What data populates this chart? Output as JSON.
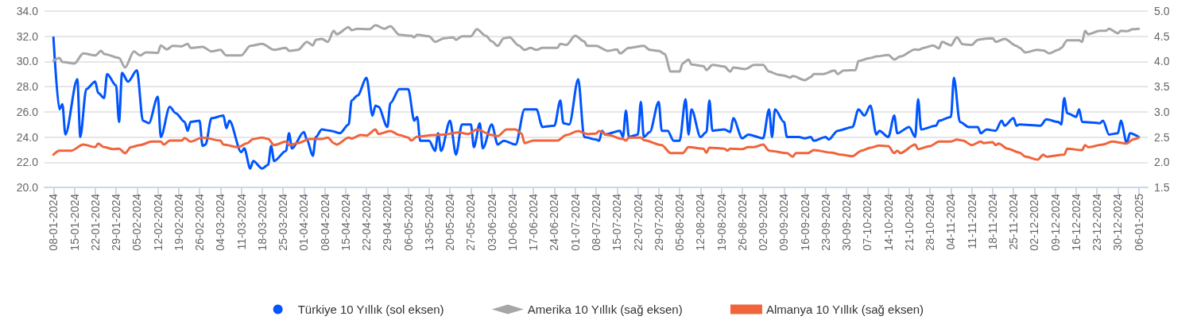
{
  "chart_data": {
    "type": "line",
    "grid": "y",
    "legend": "bottom",
    "xlim": [
      "2024-01-05",
      "2025-01-09"
    ],
    "xticks": [
      {
        "value": "2024-01-08",
        "label": "08-01-2024"
      },
      {
        "value": "2024-01-15",
        "label": "15-01-2024"
      },
      {
        "value": "2024-01-22",
        "label": "22-01-2024"
      },
      {
        "value": "2024-01-29",
        "label": "29-01-2024"
      },
      {
        "value": "2024-02-05",
        "label": "05-02-2024"
      },
      {
        "value": "2024-02-12",
        "label": "12-02-2024"
      },
      {
        "value": "2024-02-19",
        "label": "19-02-2024"
      },
      {
        "value": "2024-02-26",
        "label": "26-02-2024"
      },
      {
        "value": "2024-03-04",
        "label": "04-03-2024"
      },
      {
        "value": "2024-03-11",
        "label": "11-03-2024"
      },
      {
        "value": "2024-03-18",
        "label": "18-03-2024"
      },
      {
        "value": "2024-03-25",
        "label": "25-03-2024"
      },
      {
        "value": "2024-04-01",
        "label": "01-04-2024"
      },
      {
        "value": "2024-04-08",
        "label": "08-04-2024"
      },
      {
        "value": "2024-04-15",
        "label": "15-04-2024"
      },
      {
        "value": "2024-04-22",
        "label": "22-04-2024"
      },
      {
        "value": "2024-04-29",
        "label": "29-04-2024"
      },
      {
        "value": "2024-05-06",
        "label": "06-05-2024"
      },
      {
        "value": "2024-05-13",
        "label": "13-05-2024"
      },
      {
        "value": "2024-05-20",
        "label": "20-05-2024"
      },
      {
        "value": "2024-05-27",
        "label": "27-05-2024"
      },
      {
        "value": "2024-06-03",
        "label": "03-06-2024"
      },
      {
        "value": "2024-06-10",
        "label": "10-06-2024"
      },
      {
        "value": "2024-06-17",
        "label": "17-06-2024"
      },
      {
        "value": "2024-06-24",
        "label": "24-06-2024"
      },
      {
        "value": "2024-07-01",
        "label": "01-07-2024"
      },
      {
        "value": "2024-07-08",
        "label": "08-07-2024"
      },
      {
        "value": "2024-07-15",
        "label": "15-07-2024"
      },
      {
        "value": "2024-07-22",
        "label": "22-07-2024"
      },
      {
        "value": "2024-07-29",
        "label": "29-07-2024"
      },
      {
        "value": "2024-08-05",
        "label": "05-08-2024"
      },
      {
        "value": "2024-08-12",
        "label": "12-08-2024"
      },
      {
        "value": "2024-08-19",
        "label": "19-08-2024"
      },
      {
        "value": "2024-08-26",
        "label": "26-08-2024"
      },
      {
        "value": "2024-09-02",
        "label": "02-09-2024"
      },
      {
        "value": "2024-09-09",
        "label": "09-09-2024"
      },
      {
        "value": "2024-09-16",
        "label": "16-09-2024"
      },
      {
        "value": "2024-09-23",
        "label": "23-09-2024"
      },
      {
        "value": "2024-09-30",
        "label": "30-09-2024"
      },
      {
        "value": "2024-10-07",
        "label": "07-10-2024"
      },
      {
        "value": "2024-10-14",
        "label": "14-10-2024"
      },
      {
        "value": "2024-10-21",
        "label": "21-10-2024"
      },
      {
        "value": "2024-10-28",
        "label": "28-10-2024"
      },
      {
        "value": "2024-11-04",
        "label": "04-11-2024"
      },
      {
        "value": "2024-11-11",
        "label": "11-11-2024"
      },
      {
        "value": "2024-11-18",
        "label": "18-11-2024"
      },
      {
        "value": "2024-11-25",
        "label": "25-11-2024"
      },
      {
        "value": "2024-12-02",
        "label": "02-12-2024"
      },
      {
        "value": "2024-12-09",
        "label": "09-12-2024"
      },
      {
        "value": "2024-12-16",
        "label": "16-12-2024"
      },
      {
        "value": "2024-12-23",
        "label": "23-12-2024"
      },
      {
        "value": "2024-12-30",
        "label": "30-12-2024"
      },
      {
        "value": "2025-01-06",
        "label": "06-01-2025"
      }
    ],
    "ylim": [
      20,
      34
    ],
    "yticks": [
      {
        "value": 20,
        "label": "20.0"
      },
      {
        "value": 22,
        "label": "22.0"
      },
      {
        "value": 24,
        "label": "24.0"
      },
      {
        "value": 26,
        "label": "26.0"
      },
      {
        "value": 28,
        "label": "28.0"
      },
      {
        "value": 30,
        "label": "30.0"
      },
      {
        "value": 32,
        "label": "32.0"
      },
      {
        "value": 34,
        "label": "34.0"
      }
    ],
    "y2lim": [
      1.5,
      5
    ],
    "y2ticks": [
      1.5,
      {
        "value": 2,
        "label": "2.0"
      },
      2.5,
      {
        "value": 3,
        "label": "3.0"
      },
      3.5,
      {
        "value": 4,
        "label": "4.0"
      },
      4.5,
      {
        "value": 5,
        "label": "5.0"
      }
    ],
    "series": [
      {
        "name": "Türkiye 10 Yıllık (sol eksen)",
        "color": "#0055ff",
        "x": [
          "2024-01-08",
          "2024-01-10",
          "2024-01-11",
          "2024-01-12",
          "2024-01-16",
          "2024-01-17",
          "2024-01-19",
          "2024-01-22",
          "2024-01-23",
          "2024-01-25",
          "2024-01-26",
          "2024-01-29",
          "2024-01-30",
          "2024-01-31",
          "2024-02-02",
          "2024-02-05",
          "2024-02-07",
          "2024-02-09",
          "2024-02-12",
          "2024-02-13",
          "2024-02-16",
          "2024-02-18",
          "2024-02-21",
          "2024-02-22",
          "2024-02-23",
          "2024-02-26",
          "2024-02-27",
          "2024-02-28",
          "2024-03-01",
          "2024-03-05",
          "2024-03-06",
          "2024-03-07",
          "2024-03-11",
          "2024-03-12",
          "2024-03-14",
          "2024-03-15",
          "2024-03-18",
          "2024-03-20",
          "2024-03-21",
          "2024-03-22",
          "2024-03-26",
          "2024-03-27",
          "2024-03-28",
          "2024-04-01",
          "2024-04-02",
          "2024-04-04",
          "2024-04-05",
          "2024-04-07",
          "2024-04-10",
          "2024-04-13",
          "2024-04-16",
          "2024-04-17",
          "2024-04-19",
          "2024-04-22",
          "2024-04-24",
          "2024-04-25",
          "2024-04-26",
          "2024-04-29",
          "2024-04-30",
          "2024-05-03",
          "2024-05-06",
          "2024-05-08",
          "2024-05-09",
          "2024-05-10",
          "2024-05-13",
          "2024-05-15",
          "2024-05-16",
          "2024-05-17",
          "2024-05-20",
          "2024-05-22",
          "2024-05-24",
          "2024-05-27",
          "2024-05-28",
          "2024-05-30",
          "2024-05-31",
          "2024-06-03",
          "2024-06-05",
          "2024-06-07",
          "2024-06-11",
          "2024-06-14",
          "2024-06-18",
          "2024-06-20",
          "2024-06-24",
          "2024-06-26",
          "2024-06-27",
          "2024-06-29",
          "2024-07-02",
          "2024-07-04",
          "2024-07-08",
          "2024-07-09",
          "2024-07-10",
          "2024-07-11",
          "2024-07-16",
          "2024-07-17",
          "2024-07-18",
          "2024-07-19",
          "2024-07-22",
          "2024-07-23",
          "2024-07-24",
          "2024-07-26",
          "2024-07-29",
          "2024-07-30",
          "2024-08-01",
          "2024-08-03",
          "2024-08-05",
          "2024-08-07",
          "2024-08-08",
          "2024-08-09",
          "2024-08-12",
          "2024-08-14",
          "2024-08-15",
          "2024-08-16",
          "2024-08-20",
          "2024-08-22",
          "2024-08-23",
          "2024-08-26",
          "2024-08-28",
          "2024-09-02",
          "2024-09-04",
          "2024-09-05",
          "2024-09-06",
          "2024-09-09",
          "2024-09-10",
          "2024-09-14",
          "2024-09-16",
          "2024-09-18",
          "2024-09-19",
          "2024-09-23",
          "2024-09-24",
          "2024-09-27",
          "2024-10-02",
          "2024-10-04",
          "2024-10-06",
          "2024-10-08",
          "2024-10-10",
          "2024-10-11",
          "2024-10-14",
          "2024-10-16",
          "2024-10-17",
          "2024-10-21",
          "2024-10-23",
          "2024-10-24",
          "2024-10-25",
          "2024-10-30",
          "2024-10-31",
          "2024-11-04",
          "2024-11-05",
          "2024-11-07",
          "2024-11-10",
          "2024-11-13",
          "2024-11-14",
          "2024-11-16",
          "2024-11-19",
          "2024-11-21",
          "2024-11-22",
          "2024-11-25",
          "2024-11-26",
          "2024-11-27",
          "2024-12-04",
          "2024-12-06",
          "2024-12-10",
          "2024-12-11",
          "2024-12-12",
          "2024-12-13",
          "2024-12-16",
          "2024-12-17",
          "2024-12-18",
          "2024-12-24",
          "2024-12-25",
          "2024-12-27",
          "2024-12-30",
          "2024-12-31",
          "2025-01-02",
          "2025-01-03",
          "2025-01-06"
        ],
        "values": [
          31.9,
          26.2,
          26.6,
          24.2,
          28.6,
          24.0,
          27.8,
          28.4,
          27.5,
          27.1,
          29.0,
          28.1,
          25.2,
          29.1,
          28.4,
          29.3,
          25.3,
          25.1,
          27.2,
          24.0,
          26.4,
          25.9,
          25.2,
          24.5,
          25.2,
          25.3,
          23.3,
          23.4,
          25.5,
          25.7,
          24.7,
          25.3,
          22.8,
          23.1,
          21.5,
          22.1,
          21.5,
          21.8,
          23.3,
          22.1,
          22.9,
          24.3,
          23.1,
          24.4,
          23.8,
          22.5,
          24.0,
          24.6,
          24.5,
          24.3,
          25.0,
          26.9,
          27.3,
          28.7,
          25.7,
          26.5,
          26.4,
          24.8,
          26.7,
          27.8,
          27.8,
          25.3,
          25.6,
          23.7,
          23.7,
          22.9,
          24.3,
          22.9,
          25.3,
          22.6,
          25.0,
          25.0,
          23.2,
          25.1,
          23.1,
          25.0,
          23.4,
          23.7,
          23.4,
          26.2,
          26.2,
          24.8,
          24.9,
          26.9,
          25.1,
          25.0,
          28.6,
          24.0,
          23.8,
          23.7,
          24.5,
          24.2,
          24.5,
          24.0,
          26.1,
          24.0,
          24.2,
          26.8,
          24.0,
          24.4,
          26.8,
          24.5,
          24.5,
          23.7,
          23.7,
          27.0,
          24.2,
          26.2,
          24.0,
          24.4,
          26.9,
          24.5,
          24.6,
          24.4,
          25.5,
          23.9,
          24.2,
          23.9,
          26.2,
          24.0,
          26.2,
          25.2,
          24.0,
          24.0,
          23.9,
          24.0,
          23.7,
          24.0,
          23.8,
          24.5,
          24.8,
          26.2,
          25.7,
          26.5,
          24.2,
          24.5,
          24.0,
          25.7,
          24.3,
          24.8,
          24.0,
          27.0,
          24.6,
          24.9,
          25.3,
          25.6,
          28.7,
          25.2,
          24.8,
          24.8,
          24.3,
          24.6,
          24.5,
          25.3,
          24.9,
          25.5,
          24.9,
          25.0,
          24.9,
          25.4,
          25.2,
          25.0,
          27.1,
          25.9,
          25.6,
          26.2,
          25.2,
          25.1,
          25.3,
          24.2,
          24.3,
          25.3,
          23.5,
          24.3,
          24.0
        ]
      },
      {
        "name": "Amerika 10 Yıllık (sağ eksen)",
        "color": "#a6a6a6",
        "axis": "y2",
        "x": [
          "2024-01-08",
          "2024-01-10",
          "2024-01-11",
          "2024-01-15",
          "2024-01-18",
          "2024-01-22",
          "2024-01-24",
          "2024-01-25",
          "2024-01-30",
          "2024-02-01",
          "2024-02-04",
          "2024-02-06",
          "2024-02-08",
          "2024-02-12",
          "2024-02-13",
          "2024-02-15",
          "2024-02-17",
          "2024-02-20",
          "2024-02-22",
          "2024-02-23",
          "2024-02-27",
          "2024-03-01",
          "2024-03-04",
          "2024-03-06",
          "2024-03-11",
          "2024-03-14",
          "2024-03-18",
          "2024-03-22",
          "2024-03-26",
          "2024-03-27",
          "2024-03-30",
          "2024-04-02",
          "2024-04-04",
          "2024-04-05",
          "2024-04-07",
          "2024-04-09",
          "2024-04-11",
          "2024-04-12",
          "2024-04-16",
          "2024-04-17",
          "2024-04-19",
          "2024-04-23",
          "2024-04-25",
          "2024-04-28",
          "2024-04-30",
          "2024-05-03",
          "2024-05-07",
          "2024-05-08",
          "2024-05-09",
          "2024-05-13",
          "2024-05-15",
          "2024-05-18",
          "2024-05-21",
          "2024-05-22",
          "2024-05-24",
          "2024-05-27",
          "2024-05-29",
          "2024-06-01",
          "2024-06-03",
          "2024-06-05",
          "2024-06-07",
          "2024-06-09",
          "2024-06-12",
          "2024-06-14",
          "2024-06-16",
          "2024-06-18",
          "2024-06-20",
          "2024-06-25",
          "2024-06-26",
          "2024-06-28",
          "2024-07-01",
          "2024-07-04",
          "2024-07-05",
          "2024-07-08",
          "2024-07-12",
          "2024-07-15",
          "2024-07-16",
          "2024-07-19",
          "2024-07-24",
          "2024-07-26",
          "2024-07-29",
          "2024-07-31",
          "2024-08-02",
          "2024-08-05",
          "2024-08-06",
          "2024-08-08",
          "2024-08-09",
          "2024-08-13",
          "2024-08-14",
          "2024-08-16",
          "2024-08-20",
          "2024-08-22",
          "2024-08-23",
          "2024-08-27",
          "2024-08-30",
          "2024-09-02",
          "2024-09-04",
          "2024-09-07",
          "2024-09-09",
          "2024-09-11",
          "2024-09-12",
          "2024-09-16",
          "2024-09-18",
          "2024-09-19",
          "2024-09-22",
          "2024-09-26",
          "2024-09-27",
          "2024-09-29",
          "2024-10-03",
          "2024-10-04",
          "2024-10-08",
          "2024-10-10",
          "2024-10-14",
          "2024-10-16",
          "2024-10-18",
          "2024-10-23",
          "2024-10-24",
          "2024-10-26",
          "2024-10-29",
          "2024-10-31",
          "2024-11-01",
          "2024-11-04",
          "2024-11-06",
          "2024-11-08",
          "2024-11-11",
          "2024-11-13",
          "2024-11-15",
          "2024-11-18",
          "2024-11-19",
          "2024-11-22",
          "2024-11-26",
          "2024-11-27",
          "2024-11-29",
          "2024-12-03",
          "2024-12-05",
          "2024-12-07",
          "2024-12-10",
          "2024-12-11",
          "2024-12-13",
          "2024-12-17",
          "2024-12-18",
          "2024-12-19",
          "2024-12-20",
          "2024-12-24",
          "2024-12-26",
          "2024-12-27",
          "2024-12-30",
          "2024-12-31",
          "2025-01-02",
          "2025-01-04",
          "2025-01-06"
        ],
        "values": [
          4.01,
          4.07,
          3.99,
          3.96,
          4.16,
          4.12,
          4.21,
          4.15,
          4.07,
          3.88,
          4.2,
          4.12,
          4.18,
          4.17,
          4.32,
          4.24,
          4.31,
          4.3,
          4.35,
          4.27,
          4.29,
          4.2,
          4.23,
          4.12,
          4.12,
          4.31,
          4.35,
          4.23,
          4.27,
          4.21,
          4.23,
          4.39,
          4.32,
          4.43,
          4.45,
          4.39,
          4.61,
          4.54,
          4.68,
          4.62,
          4.65,
          4.64,
          4.72,
          4.65,
          4.7,
          4.53,
          4.51,
          4.48,
          4.53,
          4.5,
          4.39,
          4.46,
          4.48,
          4.43,
          4.5,
          4.5,
          4.64,
          4.51,
          4.4,
          4.31,
          4.46,
          4.48,
          4.32,
          4.23,
          4.27,
          4.23,
          4.27,
          4.27,
          4.35,
          4.33,
          4.51,
          4.4,
          4.31,
          4.31,
          4.21,
          4.24,
          4.16,
          4.27,
          4.31,
          4.23,
          4.21,
          4.15,
          3.8,
          3.8,
          3.96,
          4.04,
          3.94,
          3.91,
          3.83,
          3.93,
          3.9,
          3.8,
          3.88,
          3.85,
          3.93,
          3.93,
          3.8,
          3.74,
          3.72,
          3.68,
          3.71,
          3.63,
          3.69,
          3.75,
          3.75,
          3.82,
          3.75,
          3.82,
          3.83,
          4.01,
          4.07,
          4.1,
          4.13,
          4.04,
          4.1,
          4.24,
          4.23,
          4.27,
          4.32,
          4.26,
          4.39,
          4.32,
          4.48,
          4.34,
          4.33,
          4.43,
          4.45,
          4.46,
          4.39,
          4.45,
          4.31,
          4.27,
          4.18,
          4.23,
          4.22,
          4.16,
          4.23,
          4.27,
          4.42,
          4.42,
          4.39,
          4.61,
          4.54,
          4.61,
          4.61,
          4.65,
          4.56,
          4.61,
          4.6,
          4.64,
          4.65
        ]
      },
      {
        "name": "Almanya 10 Yıllık (sağ eksen)",
        "color": "#f0643c",
        "axis": "y2",
        "x": [
          "2024-01-08",
          "2024-01-10",
          "2024-01-14",
          "2024-01-18",
          "2024-01-22",
          "2024-01-23",
          "2024-01-25",
          "2024-01-28",
          "2024-01-30",
          "2024-02-01",
          "2024-02-03",
          "2024-02-06",
          "2024-02-10",
          "2024-02-13",
          "2024-02-14",
          "2024-02-16",
          "2024-02-20",
          "2024-02-21",
          "2024-02-23",
          "2024-02-27",
          "2024-03-04",
          "2024-03-05",
          "2024-03-10",
          "2024-03-13",
          "2024-03-15",
          "2024-03-18",
          "2024-03-20",
          "2024-03-22",
          "2024-03-26",
          "2024-03-27",
          "2024-03-30",
          "2024-04-03",
          "2024-04-07",
          "2024-04-09",
          "2024-04-11",
          "2024-04-12",
          "2024-04-16",
          "2024-04-17",
          "2024-04-20",
          "2024-04-22",
          "2024-04-25",
          "2024-04-26",
          "2024-04-30",
          "2024-05-03",
          "2024-05-06",
          "2024-05-07",
          "2024-05-09",
          "2024-05-15",
          "2024-05-18",
          "2024-05-23",
          "2024-05-26",
          "2024-05-29",
          "2024-06-03",
          "2024-06-05",
          "2024-06-08",
          "2024-06-11",
          "2024-06-13",
          "2024-06-14",
          "2024-06-17",
          "2024-06-25",
          "2024-06-28",
          "2024-07-02",
          "2024-07-05",
          "2024-07-08",
          "2024-07-09",
          "2024-07-12",
          "2024-07-17",
          "2024-07-18",
          "2024-07-19",
          "2024-07-23",
          "2024-07-24",
          "2024-07-30",
          "2024-08-02",
          "2024-08-06",
          "2024-08-08",
          "2024-08-13",
          "2024-08-14",
          "2024-08-15",
          "2024-08-20",
          "2024-08-21",
          "2024-08-22",
          "2024-08-26",
          "2024-08-28",
          "2024-08-30",
          "2024-09-02",
          "2024-09-04",
          "2024-09-10",
          "2024-09-12",
          "2024-09-13",
          "2024-09-17",
          "2024-09-19",
          "2024-09-25",
          "2024-09-28",
          "2024-10-02",
          "2024-10-05",
          "2024-10-08",
          "2024-10-11",
          "2024-10-14",
          "2024-10-16",
          "2024-10-17",
          "2024-10-18",
          "2024-10-23",
          "2024-10-24",
          "2024-10-28",
          "2024-10-31",
          "2024-11-04",
          "2024-11-06",
          "2024-11-08",
          "2024-11-11",
          "2024-11-14",
          "2024-11-15",
          "2024-11-18",
          "2024-11-19",
          "2024-11-20",
          "2024-11-23",
          "2024-11-27",
          "2024-11-29",
          "2024-12-03",
          "2024-12-05",
          "2024-12-06",
          "2024-12-12",
          "2024-12-13",
          "2024-12-18",
          "2024-12-19",
          "2024-12-20",
          "2024-12-25",
          "2024-12-28",
          "2025-01-02",
          "2025-01-04",
          "2025-01-06"
        ],
        "values": [
          2.15,
          2.23,
          2.23,
          2.35,
          2.3,
          2.37,
          2.3,
          2.26,
          2.27,
          2.18,
          2.3,
          2.34,
          2.41,
          2.41,
          2.35,
          2.43,
          2.43,
          2.48,
          2.41,
          2.49,
          2.43,
          2.35,
          2.3,
          2.38,
          2.46,
          2.49,
          2.46,
          2.34,
          2.41,
          2.34,
          2.38,
          2.46,
          2.46,
          2.49,
          2.38,
          2.35,
          2.49,
          2.47,
          2.54,
          2.53,
          2.65,
          2.56,
          2.62,
          2.54,
          2.49,
          2.43,
          2.51,
          2.54,
          2.55,
          2.59,
          2.56,
          2.65,
          2.54,
          2.52,
          2.65,
          2.65,
          2.57,
          2.38,
          2.43,
          2.43,
          2.54,
          2.62,
          2.56,
          2.57,
          2.62,
          2.54,
          2.46,
          2.43,
          2.49,
          2.49,
          2.44,
          2.34,
          2.18,
          2.18,
          2.3,
          2.27,
          2.19,
          2.29,
          2.27,
          2.23,
          2.27,
          2.26,
          2.3,
          2.3,
          2.35,
          2.23,
          2.18,
          2.11,
          2.18,
          2.18,
          2.24,
          2.19,
          2.15,
          2.12,
          2.23,
          2.29,
          2.33,
          2.32,
          2.18,
          2.23,
          2.18,
          2.35,
          2.26,
          2.32,
          2.41,
          2.41,
          2.45,
          2.43,
          2.34,
          2.41,
          2.38,
          2.4,
          2.34,
          2.37,
          2.27,
          2.19,
          2.11,
          2.05,
          2.15,
          2.11,
          2.15,
          2.27,
          2.24,
          2.34,
          2.3,
          2.35,
          2.41,
          2.37,
          2.45,
          2.49
        ]
      }
    ]
  }
}
